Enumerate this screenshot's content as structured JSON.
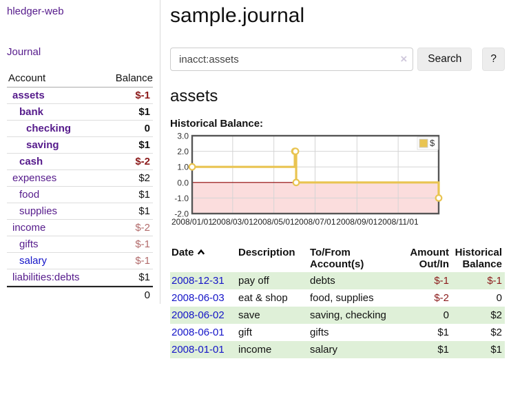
{
  "app": {
    "title": "hledger-web",
    "nav_journal": "Journal"
  },
  "sidebar": {
    "accounts": {
      "col_account": "Account",
      "col_balance": "Balance",
      "rows": [
        {
          "name": "assets",
          "balance": "$-1",
          "indent": 0,
          "bold": true,
          "negative": true,
          "dim": false,
          "link": "purple"
        },
        {
          "name": "bank",
          "balance": "$1",
          "indent": 1,
          "bold": true,
          "negative": false,
          "dim": false,
          "link": "purple"
        },
        {
          "name": "checking",
          "balance": "0",
          "indent": 2,
          "bold": true,
          "negative": false,
          "dim": false,
          "link": "purple"
        },
        {
          "name": "saving",
          "balance": "$1",
          "indent": 2,
          "bold": true,
          "negative": false,
          "dim": false,
          "link": "purple"
        },
        {
          "name": "cash",
          "balance": "$-2",
          "indent": 1,
          "bold": true,
          "negative": true,
          "dim": false,
          "link": "purple"
        },
        {
          "name": "expenses",
          "balance": "$2",
          "indent": 0,
          "bold": false,
          "negative": false,
          "dim": false,
          "link": "purple"
        },
        {
          "name": "food",
          "balance": "$1",
          "indent": 1,
          "bold": false,
          "negative": false,
          "dim": false,
          "link": "purple"
        },
        {
          "name": "supplies",
          "balance": "$1",
          "indent": 1,
          "bold": false,
          "negative": false,
          "dim": false,
          "link": "purple"
        },
        {
          "name": "income",
          "balance": "$-2",
          "indent": 0,
          "bold": false,
          "negative": true,
          "dim": true,
          "link": "purple"
        },
        {
          "name": "gifts",
          "balance": "$-1",
          "indent": 1,
          "bold": false,
          "negative": true,
          "dim": true,
          "link": "purple"
        },
        {
          "name": "salary",
          "balance": "$-1",
          "indent": 1,
          "bold": false,
          "negative": true,
          "dim": true,
          "link": "blue"
        },
        {
          "name": "liabilities:debts",
          "balance": "$1",
          "indent": 0,
          "bold": false,
          "negative": false,
          "dim": false,
          "link": "purple"
        }
      ],
      "total": "0"
    }
  },
  "main": {
    "title": "sample.journal",
    "search": {
      "value": "inacct:assets",
      "clear_label": "×",
      "button_label": "Search",
      "help_label": "?"
    },
    "account_title": "assets",
    "chart_label": "Historical Balance:"
  },
  "chart_data": {
    "type": "line",
    "title": "Historical Balance:",
    "xlabel": "",
    "ylabel": "",
    "ylim": [
      -2,
      3
    ],
    "y_ticks": [
      3.0,
      2.0,
      1.0,
      0.0,
      -1.0,
      -2.0
    ],
    "x_range_days": 365,
    "x_ticks": [
      {
        "label": "2008/01/01",
        "day": 0
      },
      {
        "label": "2008/03/01",
        "day": 60
      },
      {
        "label": "2008/05/01",
        "day": 121
      },
      {
        "label": "2008/07/01",
        "day": 182
      },
      {
        "label": "2008/09/01",
        "day": 244
      },
      {
        "label": "2008/11/01",
        "day": 305
      }
    ],
    "grid": true,
    "legend": {
      "label": "$",
      "position": "top-right"
    },
    "series": [
      {
        "name": "$",
        "step": "after",
        "points": [
          {
            "date": "2008-01-01",
            "day": 0,
            "value": 1
          },
          {
            "date": "2008-06-01",
            "day": 152,
            "value": 2
          },
          {
            "date": "2008-06-02",
            "day": 153,
            "value": 2
          },
          {
            "date": "2008-06-03",
            "day": 154,
            "value": 0
          },
          {
            "date": "2008-12-31",
            "day": 365,
            "value": -1
          }
        ]
      }
    ],
    "colors": {
      "line": "#e9c451",
      "marker_fill": "#ffffff",
      "negative_region": "#fbdddd",
      "zero_line": "#8b0000",
      "grid": "#d4d4d4",
      "border": "#555555",
      "tick_text": "#333333"
    }
  },
  "register": {
    "headers": [
      {
        "label": "Date",
        "sorted": "asc"
      },
      {
        "label": "Description"
      },
      {
        "label": "To/From Account(s)"
      },
      {
        "label": "Amount Out/In"
      },
      {
        "label": "Historical Balance"
      }
    ],
    "rows": [
      {
        "date": "2008-12-31",
        "description": "pay off",
        "accounts": "debts",
        "amount": "$-1",
        "balance": "$-1",
        "amount_negative": true,
        "balance_negative": true
      },
      {
        "date": "2008-06-03",
        "description": "eat & shop",
        "accounts": "food, supplies",
        "amount": "$-2",
        "balance": "0",
        "amount_negative": true,
        "balance_negative": false
      },
      {
        "date": "2008-06-02",
        "description": "save",
        "accounts": "saving, checking",
        "amount": "0",
        "balance": "$2",
        "amount_negative": false,
        "balance_negative": false
      },
      {
        "date": "2008-06-01",
        "description": "gift",
        "accounts": "gifts",
        "amount": "$1",
        "balance": "$2",
        "amount_negative": false,
        "balance_negative": false
      },
      {
        "date": "2008-01-01",
        "description": "income",
        "accounts": "salary",
        "amount": "$1",
        "balance": "$1",
        "amount_negative": false,
        "balance_negative": false
      }
    ]
  }
}
